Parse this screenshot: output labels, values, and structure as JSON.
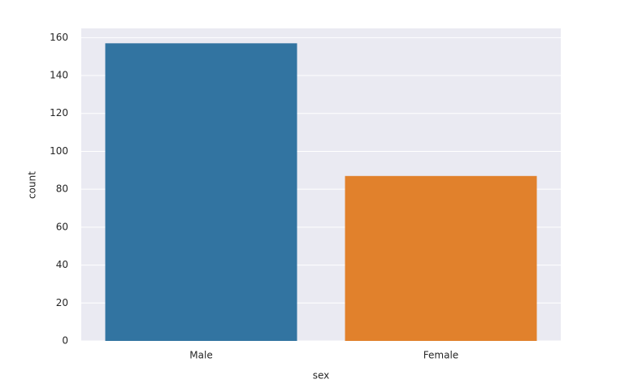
{
  "chart_data": {
    "type": "bar",
    "categories": [
      "Male",
      "Female"
    ],
    "values": [
      157,
      87
    ],
    "colors": [
      "#3274a1",
      "#e1812c"
    ],
    "x_label": "sex",
    "y_label": "count",
    "ylim": [
      0,
      164.85
    ],
    "yticks": [
      0,
      20,
      40,
      60,
      80,
      100,
      120,
      140,
      160
    ],
    "grid": true
  }
}
